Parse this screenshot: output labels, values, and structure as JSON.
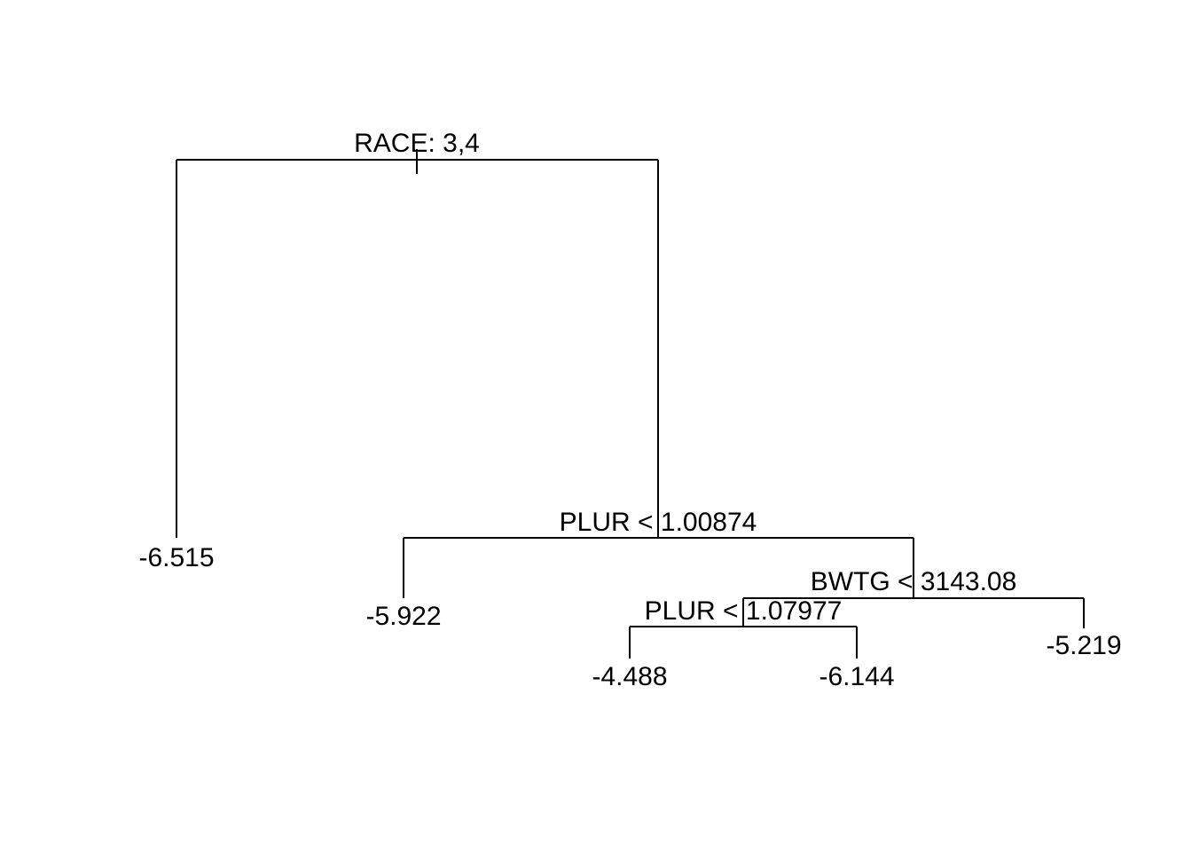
{
  "tree": {
    "root": {
      "split": "RACE: 3,4",
      "left": {
        "leaf": "-6.515"
      },
      "right": {
        "split": "PLUR < 1.00874",
        "left": {
          "leaf": "-5.922"
        },
        "right": {
          "split": "BWTG < 3143.08",
          "left": {
            "split": "PLUR < 1.07977",
            "left": {
              "leaf": "-4.488"
            },
            "right": {
              "leaf": "-6.144"
            }
          },
          "right": {
            "leaf": "-5.219"
          }
        }
      }
    }
  }
}
